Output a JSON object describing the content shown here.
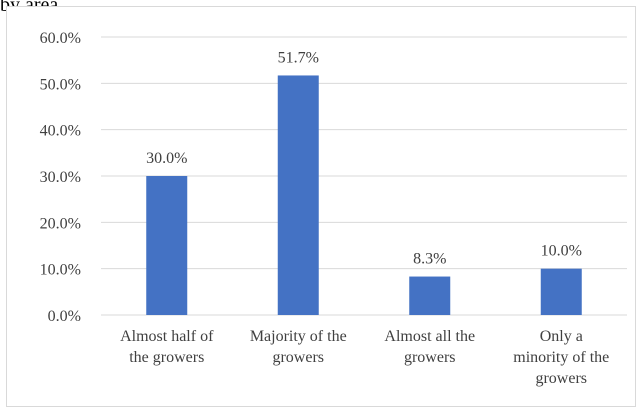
{
  "page_fragment": "by area.",
  "chart_data": {
    "type": "bar",
    "title": "",
    "xlabel": "",
    "ylabel": "",
    "categories": [
      [
        "Almost half of",
        "the growers"
      ],
      [
        "Majority of the",
        "growers"
      ],
      [
        "Almost all the",
        "growers"
      ],
      [
        "Only a",
        "minority of the",
        "growers"
      ]
    ],
    "values": [
      30.0,
      51.7,
      8.3,
      10.0
    ],
    "value_labels": [
      "30.0%",
      "51.7%",
      "8.3%",
      "10.0%"
    ],
    "ylim": [
      0,
      60
    ],
    "yticks": [
      0,
      10,
      20,
      30,
      40,
      50,
      60
    ],
    "ytick_labels": [
      "0.0%",
      "10.0%",
      "20.0%",
      "30.0%",
      "40.0%",
      "50.0%",
      "60.0%"
    ],
    "grid": true,
    "legend": "none",
    "bar_color": "#4472c4",
    "grid_color": "#d9d9d9"
  }
}
